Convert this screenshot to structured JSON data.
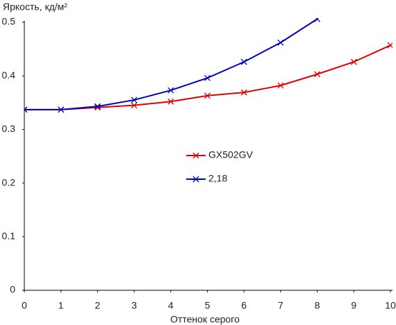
{
  "chart_data": {
    "type": "line",
    "ylabel": "Яркость, кд/м²",
    "xlabel": "Оттенок серого",
    "x": [
      0,
      1,
      2,
      3,
      4,
      5,
      6,
      7,
      8,
      9,
      10
    ],
    "series": [
      {
        "name": "GX502GV",
        "color": "#e00000",
        "values": [
          0.337,
          0.337,
          0.341,
          0.345,
          0.352,
          0.363,
          0.369,
          0.382,
          0.403,
          0.426,
          0.457
        ]
      },
      {
        "name": "2,18",
        "color": "#0000c0",
        "values": [
          0.337,
          0.337,
          0.343,
          0.355,
          0.373,
          0.396,
          0.426,
          0.462,
          0.506,
          null,
          null
        ]
      }
    ],
    "xlim": [
      0,
      10
    ],
    "xticks": [
      0,
      1,
      2,
      3,
      4,
      5,
      6,
      7,
      8,
      9,
      10
    ],
    "ylim": [
      0,
      0.5
    ],
    "yticks": [
      0,
      0.1,
      0.2,
      0.3,
      0.4,
      0.5
    ],
    "grid": false,
    "legend": "center"
  }
}
